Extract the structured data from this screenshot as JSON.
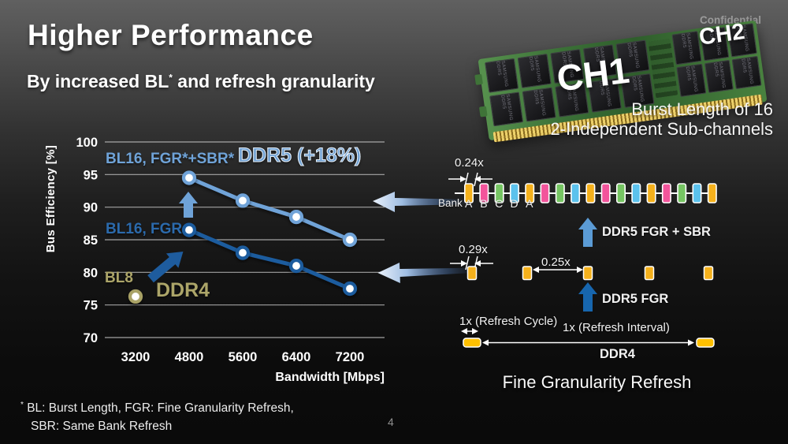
{
  "slide": {
    "confidential": "Confidential",
    "title": "Higher Performance",
    "subtitle_pre": "By increased BL",
    "subtitle_star": "*",
    "subtitle_post": " and refresh granularity",
    "footnote_star": "*",
    "footnote_line1": "BL: Burst Length,  FGR:  Fine Granularity Refresh,",
    "footnote_line2": "SBR: Same Bank Refresh",
    "page_number": "4"
  },
  "module": {
    "ch1": "CH1",
    "ch2": "CH2",
    "chip_label": "SAMSUNG DDR5",
    "caption_line1": "Burst Length of 16",
    "caption_line2": "2-Independent Sub-channels"
  },
  "chart_data": {
    "type": "line",
    "title": "",
    "xlabel": "Bandwidth [Mbps]",
    "ylabel": "Bus Efficiency [%]",
    "ylim": [
      70,
      100
    ],
    "yticks": [
      70,
      75,
      80,
      85,
      90,
      95,
      100
    ],
    "categories": [
      "3200",
      "4800",
      "5600",
      "6400",
      "7200"
    ],
    "grid": true,
    "legend_position": "inline-labels",
    "series": [
      {
        "name": "BL16, FGR*+SBR*",
        "annotation": "DDR5 (+18%)",
        "color": "#6FA3D8",
        "x": [
          "4800",
          "5600",
          "6400",
          "7200"
        ],
        "values": [
          94.5,
          91,
          88.5,
          85
        ]
      },
      {
        "name": "BL16, FGR",
        "color": "#1E5C9E",
        "x": [
          "4800",
          "5600",
          "6400",
          "7200"
        ],
        "values": [
          86.5,
          83,
          81,
          77.5
        ]
      },
      {
        "name": "BL8",
        "annotation": "DDR4",
        "color": "#A9A266",
        "x": [
          "3200"
        ],
        "values": [
          76.3
        ]
      }
    ]
  },
  "refresh_diagram": {
    "caption": "Fine Granularity Refresh",
    "fgr_sbr": {
      "measure_label": "0.24x",
      "bank_label": "Bank",
      "bank_letters": [
        "A",
        "B",
        "C",
        "D",
        "A"
      ],
      "bar_colors": [
        "#F5B11C",
        "#F2549B",
        "#76C563",
        "#5BC2ED",
        "#F5B11C",
        "#F2549B",
        "#76C563",
        "#5BC2ED",
        "#F5B11C",
        "#F2549B",
        "#76C563",
        "#5BC2ED",
        "#F5B11C",
        "#F2549B",
        "#76C563",
        "#5BC2ED",
        "#F5B11C"
      ],
      "arrow_label": "DDR5 FGR + SBR",
      "arrow_color": "#5B9BD5"
    },
    "fgr": {
      "measure_label": "0.29x",
      "gap_label": "0.25x",
      "bar_count": 5,
      "bar_color": "#F5B11C",
      "arrow_label": "DDR5 FGR",
      "arrow_color": "#1766AE"
    },
    "ddr4": {
      "cycle_label": "1x (Refresh Cycle)",
      "interval_label": "1x (Refresh Interval)",
      "label": "DDR4",
      "bar_color": "#FFC000"
    }
  },
  "colors": {
    "series_light_blue": "#6FA3D8",
    "series_dark_blue": "#1E5C9E",
    "series_khaki": "#A9A266",
    "up_arrow_light": "#5B9BD5",
    "up_arrow_dark": "#1766AE",
    "gridline": "#C6C6C6"
  }
}
